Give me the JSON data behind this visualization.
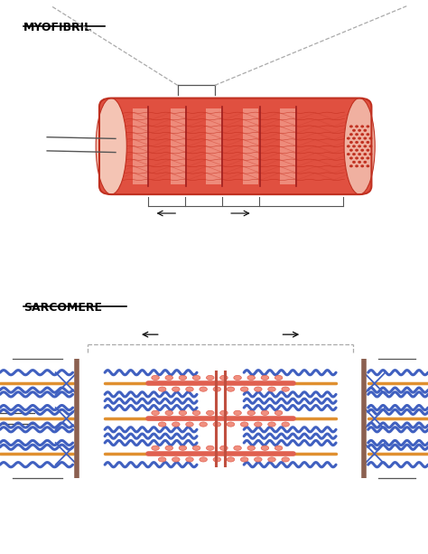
{
  "title1": "MYOFIBRIL",
  "title2": "SARCOMERE",
  "bg_color": "#ffffff",
  "myofibril_color_main": "#e05040",
  "myofibril_color_light": "#f0a090",
  "myofibril_color_dark": "#c03020",
  "myofibril_color_end": "#f4c4b4",
  "sarcomere_blue": "#4060c0",
  "sarcomere_orange": "#e09030",
  "sarcomere_red": "#e06050",
  "line_color": "#555555",
  "z_line_color": "#8B6050",
  "dashed_color": "#aaaaaa"
}
